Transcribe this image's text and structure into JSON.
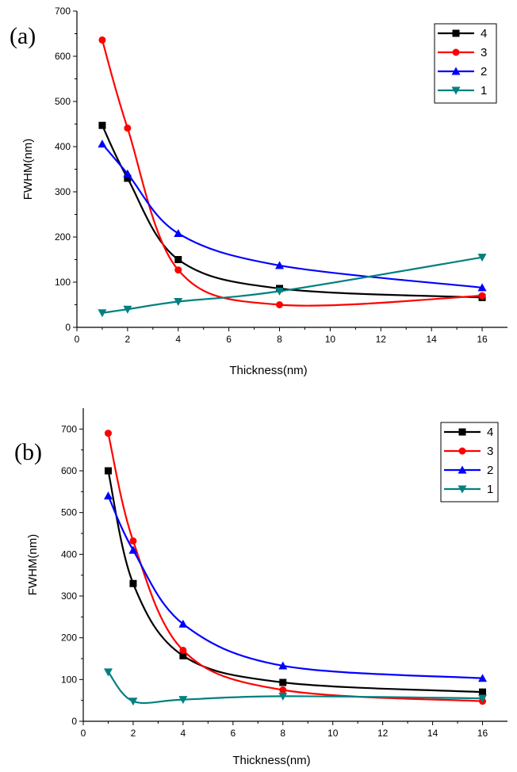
{
  "chart_data": [
    {
      "type": "line",
      "panel_label": "(a)",
      "xlabel": "Thickness(nm)",
      "ylabel": "FWHM(nm)",
      "xlim": [
        0,
        17
      ],
      "ylim": [
        0,
        700
      ],
      "xticks": [
        0,
        2,
        4,
        6,
        8,
        10,
        12,
        14,
        16
      ],
      "yticks": [
        0,
        100,
        200,
        300,
        400,
        500,
        600,
        700
      ],
      "x": [
        1,
        2,
        4,
        8,
        16
      ],
      "legend_position": "top-right",
      "series": [
        {
          "name": "4",
          "color": "#000000",
          "marker": "square",
          "values": [
            447,
            330,
            150,
            86,
            66
          ]
        },
        {
          "name": "3",
          "color": "#ff0000",
          "marker": "circle",
          "values": [
            636,
            441,
            127,
            50,
            70
          ]
        },
        {
          "name": "2",
          "color": "#0000ff",
          "marker": "triangle-up",
          "values": [
            406,
            340,
            208,
            137,
            88
          ]
        },
        {
          "name": "1",
          "color": "#008080",
          "marker": "triangle-down",
          "values": [
            32,
            40,
            57,
            80,
            155
          ]
        }
      ]
    },
    {
      "type": "line",
      "panel_label": "(b)",
      "xlabel": "Thickness(nm)",
      "ylabel": "FWHM(nm)",
      "xlim": [
        0,
        17
      ],
      "ylim": [
        0,
        750
      ],
      "xticks": [
        0,
        2,
        4,
        6,
        8,
        10,
        12,
        14,
        16
      ],
      "yticks": [
        0,
        100,
        200,
        300,
        400,
        500,
        600,
        700
      ],
      "x": [
        1,
        2,
        4,
        8,
        16
      ],
      "legend_position": "top-right",
      "series": [
        {
          "name": "4",
          "color": "#000000",
          "marker": "square",
          "values": [
            600,
            330,
            157,
            93,
            70
          ]
        },
        {
          "name": "3",
          "color": "#ff0000",
          "marker": "circle",
          "values": [
            690,
            432,
            170,
            75,
            48
          ]
        },
        {
          "name": "2",
          "color": "#0000ff",
          "marker": "triangle-up",
          "values": [
            540,
            410,
            233,
            133,
            103
          ]
        },
        {
          "name": "1",
          "color": "#008080",
          "marker": "triangle-down",
          "values": [
            118,
            48,
            52,
            60,
            55
          ]
        }
      ]
    }
  ]
}
